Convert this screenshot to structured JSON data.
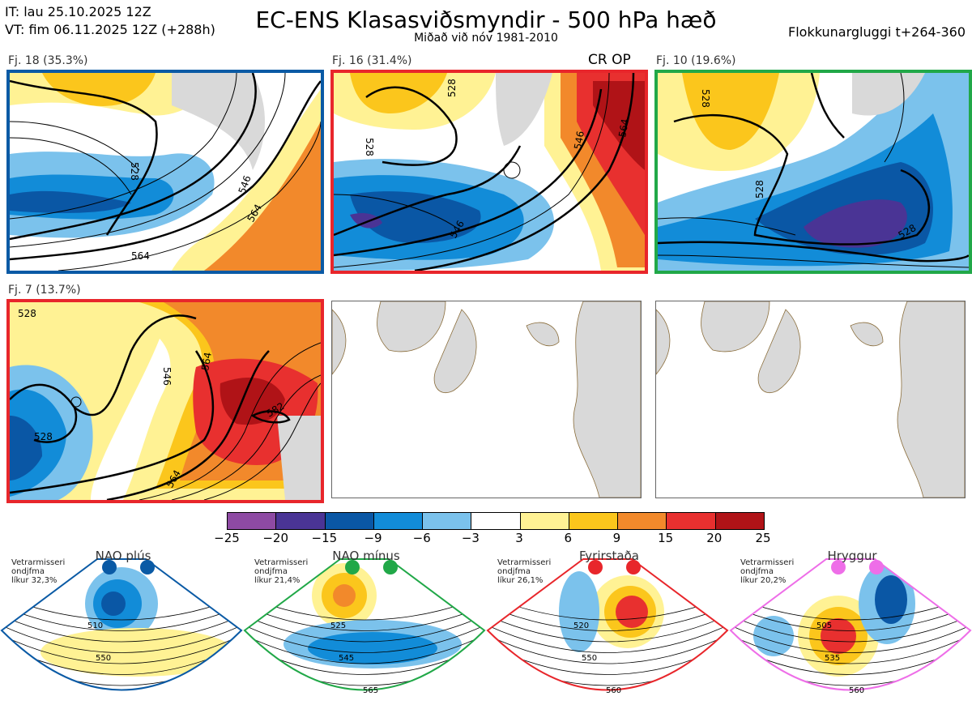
{
  "header": {
    "it_line": "IT: lau 25.10.2025 12Z",
    "vt_line": "VT: fim 06.11.2025 12Z  (+288h)",
    "title": "EC-ENS Klasasviðsmyndir - 500 hPa hæð",
    "subtitle": "Miðað við nóv 1981-2010",
    "window": "Flokkunargluggi t+264-360"
  },
  "panels": [
    {
      "label": "Fj. 18 (35.3%)",
      "border": "#0a5aa5",
      "contours": [
        "528",
        "546",
        "564",
        "564"
      ],
      "extra": ""
    },
    {
      "label": "Fj. 16 (31.4%)",
      "border": "#e8262b",
      "contours": [
        "528",
        "528",
        "546",
        "546",
        "564"
      ],
      "extra": "CR OP"
    },
    {
      "label": "Fj. 10 (19.6%)",
      "border": "#21a848",
      "contours": [
        "528",
        "528",
        "528"
      ],
      "extra": ""
    },
    {
      "label": "Fj. 7 (13.7%)",
      "border": "#e8262b",
      "contours": [
        "528",
        "528",
        "546",
        "564",
        "564",
        "582"
      ],
      "extra": ""
    }
  ],
  "scale": {
    "colors": [
      "#8e4aa3",
      "#4a3495",
      "#0a57a5",
      "#128cd8",
      "#7bc2ec",
      "#ffffff",
      "#fff294",
      "#fbc61c",
      "#f2892b",
      "#e8302f",
      "#b01317"
    ],
    "labels": [
      "−25",
      "−20",
      "−15",
      "−9",
      "−6",
      "−3",
      "3",
      "6",
      "9",
      "15",
      "20",
      "25"
    ]
  },
  "regimes": [
    {
      "name": "NAO plús",
      "note1": "Vetrarmisseri",
      "note2": "ondjfma",
      "note3": "líkur 32,3%",
      "color": "#0a5aa5",
      "contours": [
        "510",
        "550"
      ]
    },
    {
      "name": "NAO mínus",
      "note1": "Vetrarmisseri",
      "note2": "ondjfma",
      "note3": "líkur 21,4%",
      "color": "#21a848",
      "contours": [
        "525",
        "545",
        "565"
      ]
    },
    {
      "name": "Fyrirstaða",
      "note1": "Vetrarmisseri",
      "note2": "ondjfma",
      "note3": "líkur 26,1%",
      "color": "#e8262b",
      "contours": [
        "520",
        "550",
        "560"
      ]
    },
    {
      "name": "Hryggur",
      "note1": "Vetrarmisseri",
      "note2": "ondjfma",
      "note3": "líkur 20,2%",
      "color": "#ee6ee8",
      "contours": [
        "505",
        "535",
        "560"
      ]
    }
  ]
}
